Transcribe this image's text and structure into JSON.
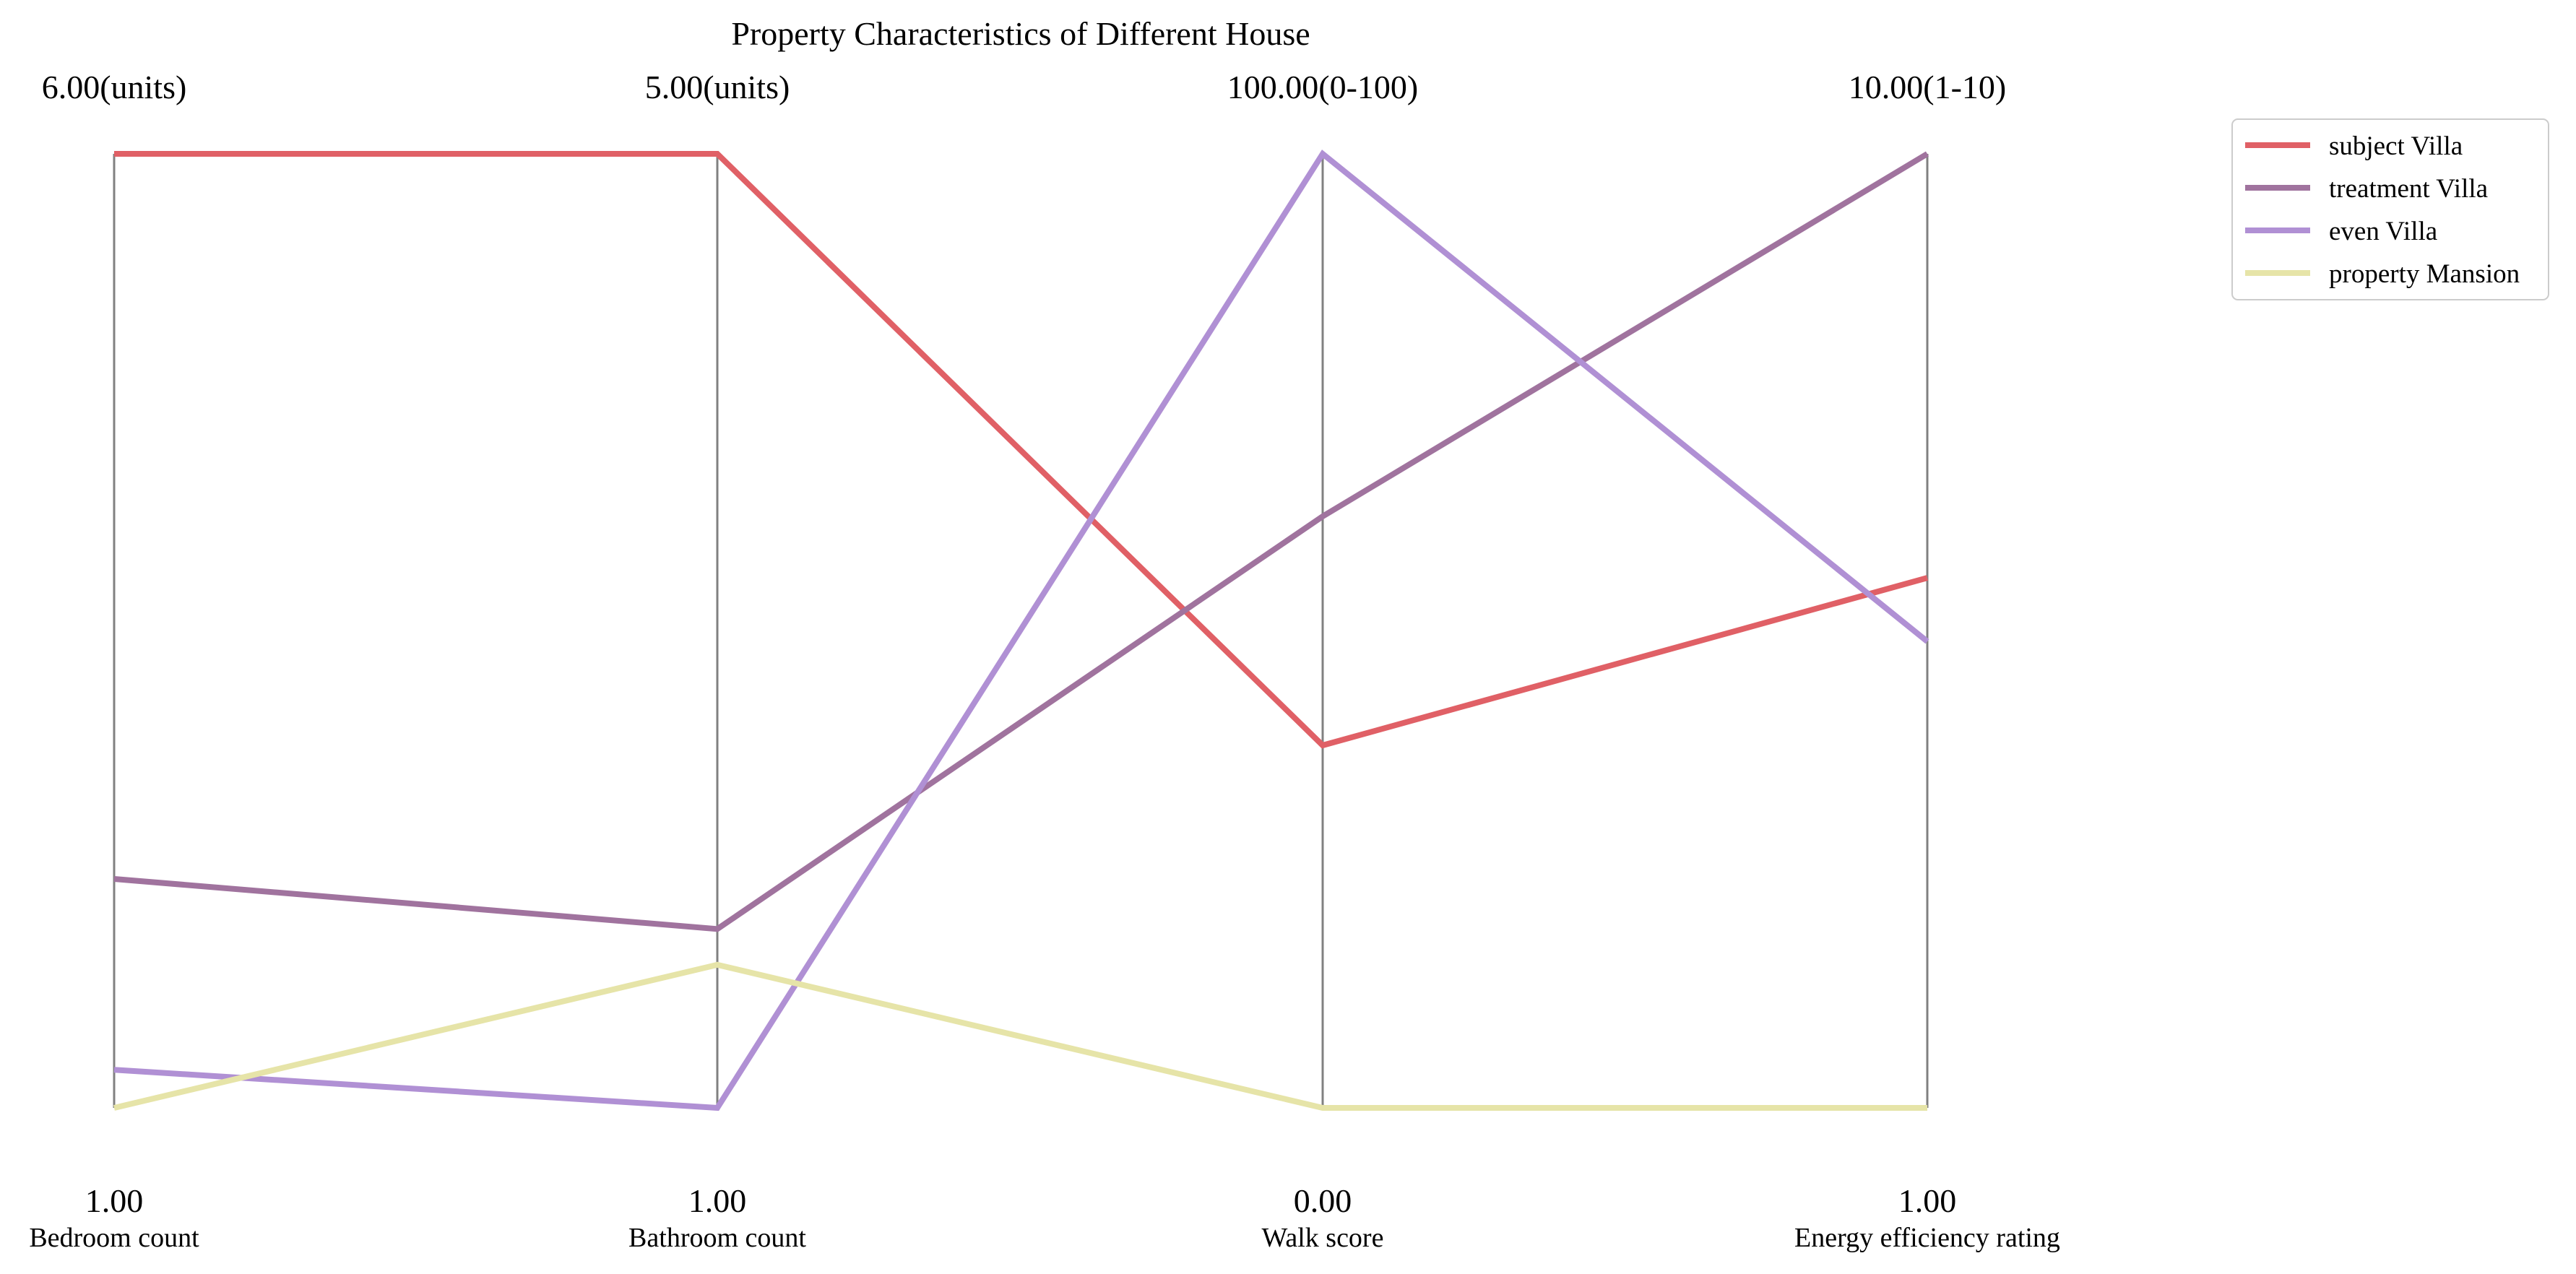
{
  "chart_data": {
    "type": "parallel-coordinates",
    "title": "Property Characteristics of Different House",
    "axes": [
      {
        "label": "Bedroom count",
        "min": 1,
        "max": 6,
        "min_label": "1.00",
        "max_label": "6.00(units)"
      },
      {
        "label": "Bathroom count",
        "min": 1,
        "max": 5,
        "min_label": "1.00",
        "max_label": "5.00(units)"
      },
      {
        "label": "Walk score",
        "min": 0,
        "max": 100,
        "min_label": "0.00",
        "max_label": "100.00(0-100)"
      },
      {
        "label": "Energy efficiency rating",
        "min": 1,
        "max": 10,
        "min_label": "1.00",
        "max_label": "10.00(1-10)"
      }
    ],
    "series": [
      {
        "name": "subject Villa",
        "color": "#e06066",
        "values": [
          6,
          5,
          38,
          6
        ]
      },
      {
        "name": "treatment Villa",
        "color": "#a0739e",
        "values": [
          2.2,
          1.75,
          62,
          10
        ]
      },
      {
        "name": "even Villa",
        "color": "#b090d4",
        "values": [
          1.2,
          1,
          100,
          5.4
        ]
      },
      {
        "name": "property Mansion",
        "color": "#e6e4a8",
        "values": [
          1,
          1.6,
          0,
          1
        ]
      }
    ],
    "legend_position": "top-right",
    "grid": false
  }
}
